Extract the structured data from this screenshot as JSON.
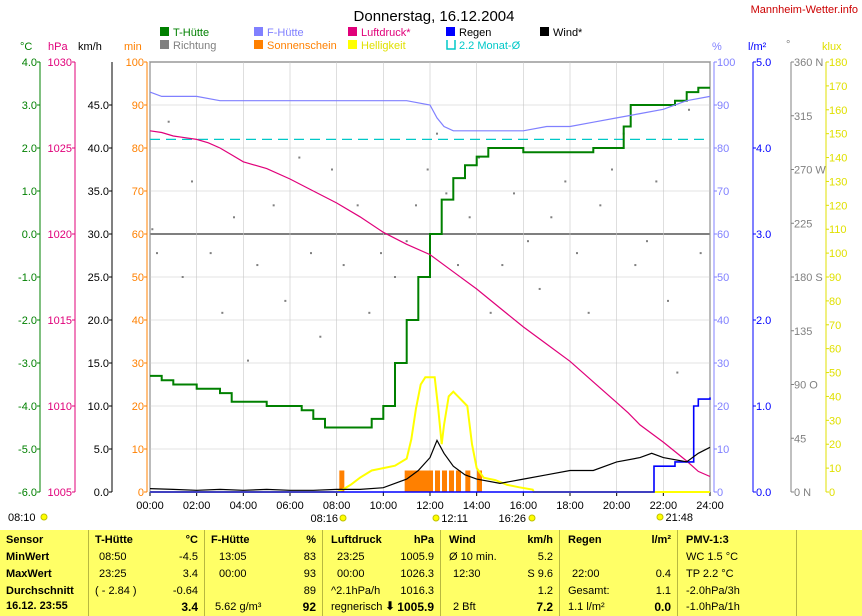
{
  "page": {
    "title": "Donnerstag, 16.12.2004",
    "site": "Mannheim-Wetter.info"
  },
  "colors": {
    "t_huette": "#008000",
    "f_huette": "#8080ff",
    "luftdruck": "#e0007a",
    "regen": "#0000ff",
    "wind": "#000000",
    "richtung": "#808080",
    "sonnenschein": "#ff8000",
    "helligkeit": "#ffff00",
    "monat": "#00c8c8"
  },
  "legend": [
    {
      "key": "t_huette",
      "label": "T-Hütte",
      "kind": "box",
      "color": "#008000"
    },
    {
      "key": "f_huette",
      "label": "F-Hütte",
      "kind": "box",
      "color": "#8080ff"
    },
    {
      "key": "luftdruck",
      "label": "Luftdruck*",
      "kind": "box",
      "color": "#e0007a"
    },
    {
      "key": "regen",
      "label": "Regen",
      "kind": "box",
      "color": "#0000ff"
    },
    {
      "key": "wind",
      "label": "Wind*",
      "kind": "box",
      "color": "#000000"
    },
    {
      "key": "richtung",
      "label": "Richtung",
      "kind": "box",
      "color": "#808080"
    },
    {
      "key": "sonnenschein",
      "label": "Sonnenschein",
      "kind": "box",
      "color": "#ff8000"
    },
    {
      "key": "helligkeit",
      "label": "Helligkeit",
      "kind": "box",
      "color": "#ffff00"
    },
    {
      "key": "monat",
      "label": "2.2 Monat-Ø",
      "kind": "bracket",
      "color": "#00c8c8"
    }
  ],
  "axis_titles": {
    "temp": "°C",
    "hpa": "hPa",
    "kmh": "km/h",
    "min": "min",
    "pct": "%",
    "rain": "l/m²",
    "deg": "°",
    "klux": "klux"
  },
  "chart_data": {
    "type": "line",
    "x_unit": "hours",
    "x_range": [
      0,
      24
    ],
    "x_ticks": [
      "00:00",
      "02:00",
      "04:00",
      "06:00",
      "08:00",
      "10:00",
      "12:00",
      "14:00",
      "16:00",
      "18:00",
      "20:00",
      "22:00",
      "24:00"
    ],
    "axes": {
      "temp": {
        "range": [
          -6,
          4
        ],
        "ticks": [
          "4.0",
          "3.0",
          "2.0",
          "1.0",
          "0.0",
          "-1.0",
          "-2.0",
          "-3.0",
          "-4.0",
          "-5.0",
          "-6.0"
        ]
      },
      "hpa": {
        "range": [
          1005,
          1030
        ],
        "ticks": [
          "1030",
          "1025",
          "1020",
          "1015",
          "1010",
          "1005"
        ]
      },
      "kmh": {
        "range": [
          0,
          50
        ],
        "ticks": [
          "45.0",
          "40.0",
          "35.0",
          "30.0",
          "25.0",
          "20.0",
          "15.0",
          "10.0",
          "5.0",
          "0.0"
        ]
      },
      "min": {
        "range": [
          0,
          100
        ],
        "ticks": [
          "100",
          "90",
          "80",
          "70",
          "60",
          "50",
          "40",
          "30",
          "20",
          "10",
          "0"
        ]
      },
      "pct": {
        "range": [
          0,
          100
        ],
        "ticks": [
          "100",
          "90",
          "80",
          "70",
          "60",
          "50",
          "40",
          "30",
          "20",
          "10",
          "0"
        ]
      },
      "rain": {
        "range": [
          0,
          5
        ],
        "ticks": [
          "5.0",
          "4.0",
          "3.0",
          "2.0",
          "1.0",
          "0.0"
        ]
      },
      "deg": {
        "range": [
          0,
          360
        ],
        "ticks": [
          "360 N",
          "315",
          "270 W",
          "225",
          "180 S",
          "135",
          "90 O",
          "45",
          "0 N"
        ]
      },
      "klux": {
        "range": [
          0,
          180
        ],
        "ticks": [
          "180",
          "170",
          "160",
          "150",
          "140",
          "130",
          "120",
          "110",
          "100",
          "90",
          "80",
          "70",
          "60",
          "50",
          "40",
          "30",
          "20",
          "10",
          "0"
        ]
      }
    },
    "series": [
      {
        "key": "t_huette",
        "name": "T-Hütte",
        "axis": "temp",
        "step": true,
        "points": [
          [
            0,
            -3.3
          ],
          [
            0.5,
            -3.4
          ],
          [
            1,
            -3.5
          ],
          [
            2,
            -3.6
          ],
          [
            3,
            -3.7
          ],
          [
            3.5,
            -3.9
          ],
          [
            4.5,
            -3.9
          ],
          [
            5,
            -4.0
          ],
          [
            6,
            -4.0
          ],
          [
            6.5,
            -4.1
          ],
          [
            7,
            -4.3
          ],
          [
            7.5,
            -4.5
          ],
          [
            8.5,
            -4.5
          ],
          [
            9,
            -4.5
          ],
          [
            9.5,
            -4.3
          ],
          [
            10,
            -4.0
          ],
          [
            10.5,
            -3.0
          ],
          [
            11,
            -2.0
          ],
          [
            11.5,
            -1.0
          ],
          [
            12,
            0.0
          ],
          [
            12.5,
            0.8
          ],
          [
            13,
            1.3
          ],
          [
            13.5,
            1.6
          ],
          [
            14,
            1.8
          ],
          [
            14.5,
            2.0
          ],
          [
            15,
            2.0
          ],
          [
            16,
            1.9
          ],
          [
            17,
            1.9
          ],
          [
            18,
            1.9
          ],
          [
            19,
            2.0
          ],
          [
            20,
            2.0
          ],
          [
            20.3,
            2.5
          ],
          [
            20.6,
            3.0
          ],
          [
            21,
            3.0
          ],
          [
            22,
            3.0
          ],
          [
            22.5,
            3.1
          ],
          [
            23,
            3.3
          ],
          [
            23.5,
            3.4
          ],
          [
            24,
            3.4
          ]
        ]
      },
      {
        "key": "f_huette",
        "name": "F-Hütte",
        "axis": "pct",
        "points": [
          [
            0,
            93
          ],
          [
            0.5,
            92
          ],
          [
            1,
            92
          ],
          [
            2,
            92
          ],
          [
            3,
            91
          ],
          [
            4,
            91
          ],
          [
            5,
            91
          ],
          [
            6,
            91
          ],
          [
            7,
            91
          ],
          [
            8,
            91
          ],
          [
            9,
            91
          ],
          [
            10,
            91
          ],
          [
            11,
            91
          ],
          [
            12,
            90
          ],
          [
            12.3,
            87
          ],
          [
            12.6,
            85
          ],
          [
            13,
            84
          ],
          [
            14,
            84
          ],
          [
            15,
            84
          ],
          [
            16,
            84
          ],
          [
            17,
            85
          ],
          [
            18,
            85
          ],
          [
            19,
            86
          ],
          [
            20,
            87
          ],
          [
            21,
            88
          ],
          [
            22,
            89
          ],
          [
            23,
            91
          ],
          [
            24,
            92
          ]
        ]
      },
      {
        "key": "luftdruck",
        "name": "Luftdruck*",
        "axis": "hpa",
        "points": [
          [
            0,
            1026.0
          ],
          [
            0.5,
            1025.9
          ],
          [
            1,
            1025.7
          ],
          [
            1.5,
            1025.6
          ],
          [
            2,
            1025.5
          ],
          [
            2.5,
            1025.3
          ],
          [
            3,
            1025.0
          ],
          [
            3.5,
            1024.6
          ],
          [
            4,
            1024.2
          ],
          [
            5,
            1023.8
          ],
          [
            6,
            1023.2
          ],
          [
            7,
            1022.5
          ],
          [
            8,
            1021.8
          ],
          [
            9,
            1021.0
          ],
          [
            10,
            1020.1
          ],
          [
            11,
            1019.4
          ],
          [
            12,
            1018.8
          ],
          [
            13,
            1017.8
          ],
          [
            14,
            1016.8
          ],
          [
            15,
            1015.7
          ],
          [
            16,
            1014.6
          ],
          [
            17,
            1013.6
          ],
          [
            18,
            1012.6
          ],
          [
            19,
            1011.4
          ],
          [
            20,
            1010.2
          ],
          [
            20.5,
            1009.6
          ],
          [
            21,
            1008.9
          ],
          [
            22,
            1007.9
          ],
          [
            23,
            1006.8
          ],
          [
            23.5,
            1006.2
          ],
          [
            24,
            1005.9
          ]
        ]
      },
      {
        "key": "helligkeit",
        "name": "Helligkeit",
        "axis": "klux",
        "points": [
          [
            0,
            0
          ],
          [
            8,
            0
          ],
          [
            8.25,
            1
          ],
          [
            8.6,
            3
          ],
          [
            9,
            6
          ],
          [
            9.5,
            9
          ],
          [
            10,
            10
          ],
          [
            10.5,
            11
          ],
          [
            11,
            14
          ],
          [
            11.2,
            22
          ],
          [
            11.4,
            35
          ],
          [
            11.6,
            45
          ],
          [
            11.8,
            48
          ],
          [
            12,
            48
          ],
          [
            12.2,
            48
          ],
          [
            12.35,
            35
          ],
          [
            12.5,
            20
          ],
          [
            12.6,
            28
          ],
          [
            12.8,
            40
          ],
          [
            13,
            42
          ],
          [
            13.2,
            40
          ],
          [
            13.6,
            36
          ],
          [
            13.8,
            20
          ],
          [
            14,
            10
          ],
          [
            14.3,
            6
          ],
          [
            14.8,
            5
          ],
          [
            15.3,
            3
          ],
          [
            15.8,
            2
          ],
          [
            16.4,
            1
          ],
          [
            16.45,
            0
          ],
          [
            24,
            0
          ]
        ]
      },
      {
        "key": "regen",
        "name": "Regen",
        "axis": "rain",
        "step": true,
        "points": [
          [
            0,
            0
          ],
          [
            21.5,
            0
          ],
          [
            21.6,
            0.3
          ],
          [
            22.4,
            0.3
          ],
          [
            22.5,
            0.35
          ],
          [
            23.2,
            0.35
          ],
          [
            23.3,
            1.0
          ],
          [
            23.5,
            1.08
          ],
          [
            24,
            1.1
          ]
        ]
      },
      {
        "key": "wind",
        "name": "Wind*",
        "axis": "kmh",
        "points": [
          [
            0,
            0.4
          ],
          [
            1,
            0.3
          ],
          [
            2,
            0.2
          ],
          [
            3,
            0.3
          ],
          [
            4,
            0.2
          ],
          [
            5,
            0.3
          ],
          [
            6,
            0.2
          ],
          [
            7,
            0.2
          ],
          [
            8,
            0.3
          ],
          [
            9,
            0.3
          ],
          [
            10,
            0.5
          ],
          [
            11,
            1.5
          ],
          [
            11.5,
            2.5
          ],
          [
            12,
            4.0
          ],
          [
            12.3,
            6.0
          ],
          [
            12.6,
            4.5
          ],
          [
            13,
            3.0
          ],
          [
            13.5,
            2.0
          ],
          [
            14,
            1.5
          ],
          [
            15,
            1.0
          ],
          [
            16,
            1.5
          ],
          [
            17,
            2.0
          ],
          [
            18,
            2.5
          ],
          [
            19,
            2.5
          ],
          [
            20,
            3.5
          ],
          [
            21,
            4.0
          ],
          [
            21.5,
            4.5
          ],
          [
            22,
            4.0
          ],
          [
            23,
            3.5
          ],
          [
            23.5,
            4.5
          ],
          [
            24,
            5.2
          ]
        ]
      }
    ],
    "month_average": {
      "name": "2.2 Monat-Ø",
      "axis": "temp",
      "value": 2.2
    },
    "sunshine": {
      "name": "Sonnenschein",
      "axis": "min",
      "bars": [
        [
          8.2,
          5
        ],
        [
          11.0,
          5
        ],
        [
          11.2,
          5
        ],
        [
          11.4,
          5
        ],
        [
          11.6,
          5
        ],
        [
          11.8,
          5
        ],
        [
          12.0,
          5
        ],
        [
          12.3,
          5
        ],
        [
          12.6,
          5
        ],
        [
          12.9,
          5
        ],
        [
          13.2,
          5
        ],
        [
          13.6,
          5
        ],
        [
          14.1,
          5
        ]
      ]
    },
    "direction": {
      "name": "Richtung",
      "axis": "deg",
      "points": [
        [
          0.1,
          220
        ],
        [
          0.3,
          200
        ],
        [
          0.8,
          310
        ],
        [
          1.4,
          180
        ],
        [
          1.8,
          260
        ],
        [
          2.6,
          200
        ],
        [
          3.1,
          150
        ],
        [
          3.6,
          230
        ],
        [
          4.2,
          110
        ],
        [
          4.6,
          190
        ],
        [
          5.3,
          240
        ],
        [
          5.8,
          160
        ],
        [
          6.4,
          280
        ],
        [
          6.9,
          200
        ],
        [
          7.3,
          130
        ],
        [
          7.8,
          270
        ],
        [
          8.3,
          190
        ],
        [
          8.9,
          240
        ],
        [
          9.4,
          150
        ],
        [
          9.9,
          200
        ],
        [
          10.5,
          180
        ],
        [
          11.0,
          210
        ],
        [
          11.4,
          240
        ],
        [
          11.9,
          270
        ],
        [
          12.3,
          300
        ],
        [
          12.7,
          250
        ],
        [
          13.2,
          190
        ],
        [
          13.7,
          230
        ],
        [
          14.1,
          280
        ],
        [
          14.6,
          150
        ],
        [
          15.1,
          190
        ],
        [
          15.6,
          250
        ],
        [
          16.2,
          210
        ],
        [
          16.7,
          170
        ],
        [
          17.2,
          230
        ],
        [
          17.8,
          260
        ],
        [
          18.3,
          200
        ],
        [
          18.8,
          150
        ],
        [
          19.3,
          240
        ],
        [
          19.8,
          270
        ],
        [
          20.3,
          300
        ],
        [
          20.8,
          190
        ],
        [
          21.3,
          210
        ],
        [
          21.7,
          260
        ],
        [
          22.2,
          160
        ],
        [
          22.6,
          100
        ],
        [
          23.1,
          320
        ],
        [
          23.6,
          200
        ]
      ]
    }
  },
  "footer_marks": {
    "sunrise": "08:10",
    "sunrise_x": "08:16",
    "peak": "12:11",
    "set": "16:26",
    "night": "21:48"
  },
  "table": {
    "sensor": {
      "header": "Sensor",
      "min": "MinWert",
      "max": "MaxWert",
      "avg": "Durchschnitt",
      "now": "16.12. 23:55"
    },
    "t": {
      "header": "T-Hütte",
      "unit": "°C",
      "min_time": "08:50",
      "min_val": "-4.5",
      "max_time": "23:25",
      "max_val": "3.4",
      "avg_time": "( - 2.84 )",
      "avg_val": "-0.64",
      "now": "3.4"
    },
    "f": {
      "header": "F-Hütte",
      "unit": "%",
      "min_time": "13:05",
      "min_val": "83",
      "max_time": "00:00",
      "max_val": "93",
      "avg_val": "89",
      "now_extra": "5.62 g/m³",
      "now": "92"
    },
    "p": {
      "header": "Luftdruck",
      "unit": "hPa",
      "min_time": "23:25",
      "min_val": "1005.9",
      "max_time": "00:00",
      "max_val": "1026.3",
      "avg_time": "^2.1hPa/h",
      "avg_val": "1016.3",
      "now_extra": "regnerisch",
      "arrow": "⬇",
      "now": "1005.9"
    },
    "w": {
      "header": "Wind",
      "unit": "km/h",
      "min_time": "Ø 10 min.",
      "min_val": "5.2",
      "max_time": "12:30",
      "max_val": "S 9.6",
      "avg_val": "1.2",
      "now_extra": "2 Bft",
      "now": "7.2"
    },
    "r": {
      "header": "Regen",
      "unit": "l/m²",
      "max_time": "22:00",
      "max_val": "0.4",
      "avg_time": "Gesamt:",
      "avg_val": "1.1",
      "now_extra": "1.1 l/m²",
      "now": "0.0"
    },
    "pmv": {
      "header": "PMV-1:3",
      "l1": "WC 1.5 °C",
      "l2": "TP 2.2 °C",
      "l3": "-2.0hPa/3h",
      "l4": "-1.0hPa/1h"
    }
  }
}
